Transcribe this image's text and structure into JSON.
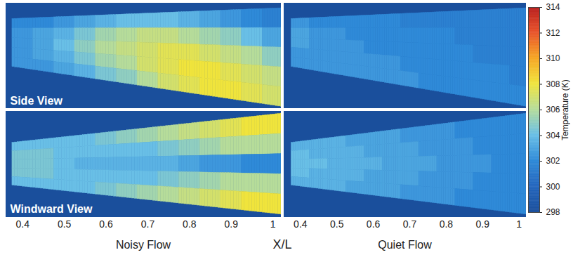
{
  "chart_data": {
    "type": "heatmap",
    "x_label": "X/L",
    "colorbar": {
      "label": "Temperature (K)",
      "range": [
        298,
        314
      ],
      "ticks": [
        298,
        300,
        302,
        304,
        306,
        308,
        310,
        312,
        314
      ]
    },
    "rows": [
      "Side View",
      "Windward View"
    ],
    "columns": [
      {
        "title": "Noisy Flow",
        "xlim": [
          0.36,
          1.02
        ],
        "xticks": [
          0.4,
          0.5,
          0.6,
          0.7,
          0.8,
          0.9,
          1
        ]
      },
      {
        "title": "Quiet Flow",
        "xlim": [
          0.355,
          1.02
        ],
        "xticks": [
          0.4,
          0.5,
          0.6,
          0.7,
          0.8,
          0.9,
          1
        ]
      }
    ],
    "x": [
      0.4,
      0.45,
      0.5,
      0.55,
      0.6,
      0.65,
      0.7,
      0.75,
      0.8,
      0.85,
      0.9,
      0.95,
      1.0
    ],
    "y": [
      0.1,
      0.3,
      0.5,
      0.7,
      0.9
    ],
    "panels": [
      {
        "row": "Side View",
        "column": "Noisy Flow",
        "cells": [
          [
            302,
            302,
            302.5,
            303,
            303.5,
            304,
            304,
            304,
            303.5,
            303,
            302.5,
            302,
            301.5
          ],
          [
            302.5,
            303,
            303.5,
            304.5,
            305.5,
            306,
            306.5,
            306.5,
            306,
            305.5,
            305,
            304,
            303
          ],
          [
            302.5,
            303,
            304,
            305,
            306,
            306.5,
            307,
            307.5,
            307.5,
            307,
            306.5,
            306,
            305
          ],
          [
            302.5,
            303,
            303.5,
            304.5,
            305.5,
            306,
            307,
            307.5,
            308,
            308,
            307.5,
            307,
            306.5
          ],
          [
            302.5,
            302.5,
            303,
            303.5,
            304.5,
            305,
            306,
            307,
            307.5,
            308,
            308,
            307.5,
            307
          ]
        ]
      },
      {
        "row": "Side View",
        "column": "Quiet Flow",
        "cells": [
          [
            302.5,
            302,
            302,
            302,
            302,
            302,
            301.5,
            301.5,
            301.5,
            301.5,
            301.5,
            301.5,
            301.5
          ],
          [
            303,
            302.5,
            302.5,
            302,
            302,
            302,
            302,
            302,
            302,
            301.5,
            301.5,
            301.5,
            301.5
          ],
          [
            303,
            302.5,
            302.5,
            302.5,
            302,
            302,
            302,
            302,
            302,
            302,
            301.5,
            301.5,
            301.5
          ],
          [
            302.5,
            302.5,
            302.5,
            302.5,
            302.5,
            302.5,
            302,
            302,
            302,
            302,
            302,
            302,
            301.5
          ],
          [
            302.5,
            302.5,
            302.5,
            302.5,
            302.5,
            302.5,
            302.5,
            302,
            302,
            302,
            302,
            302,
            302
          ]
        ]
      },
      {
        "row": "Windward View",
        "column": "Noisy Flow",
        "cells": [
          [
            304,
            304,
            304,
            304,
            304.5,
            305,
            305.5,
            306,
            306.5,
            307,
            307.5,
            308,
            308
          ],
          [
            304.5,
            304.5,
            304,
            304,
            304,
            304,
            304,
            304.5,
            305,
            305.5,
            306,
            306,
            306
          ],
          [
            304.5,
            304.5,
            304,
            303.5,
            303.5,
            303.5,
            303.5,
            303.5,
            303,
            302.5,
            302.5,
            302,
            302
          ],
          [
            304.5,
            304.5,
            304,
            304,
            304,
            304,
            304,
            304.5,
            305,
            305.5,
            306,
            306,
            306
          ],
          [
            304,
            304,
            304,
            304,
            304.5,
            305,
            305.5,
            306,
            306.5,
            307,
            307.5,
            308,
            308
          ]
        ]
      },
      {
        "row": "Windward View",
        "column": "Quiet Flow",
        "cells": [
          [
            303.5,
            303.5,
            303.5,
            303,
            303,
            303,
            302.5,
            302.5,
            302.5,
            302,
            302,
            302,
            302
          ],
          [
            304,
            303.5,
            303.5,
            303.5,
            303,
            303,
            303,
            302.5,
            302.5,
            302.5,
            302,
            302,
            302
          ],
          [
            304,
            304,
            303.5,
            303.5,
            303.5,
            303,
            303,
            303,
            302.5,
            302.5,
            302.5,
            302,
            302
          ],
          [
            304,
            303.5,
            303.5,
            303.5,
            303,
            303,
            303,
            302.5,
            302.5,
            302.5,
            302,
            302,
            302
          ],
          [
            303.5,
            303.5,
            303.5,
            303,
            303,
            303,
            302.5,
            302.5,
            302.5,
            302,
            302,
            302,
            302
          ]
        ]
      }
    ]
  }
}
